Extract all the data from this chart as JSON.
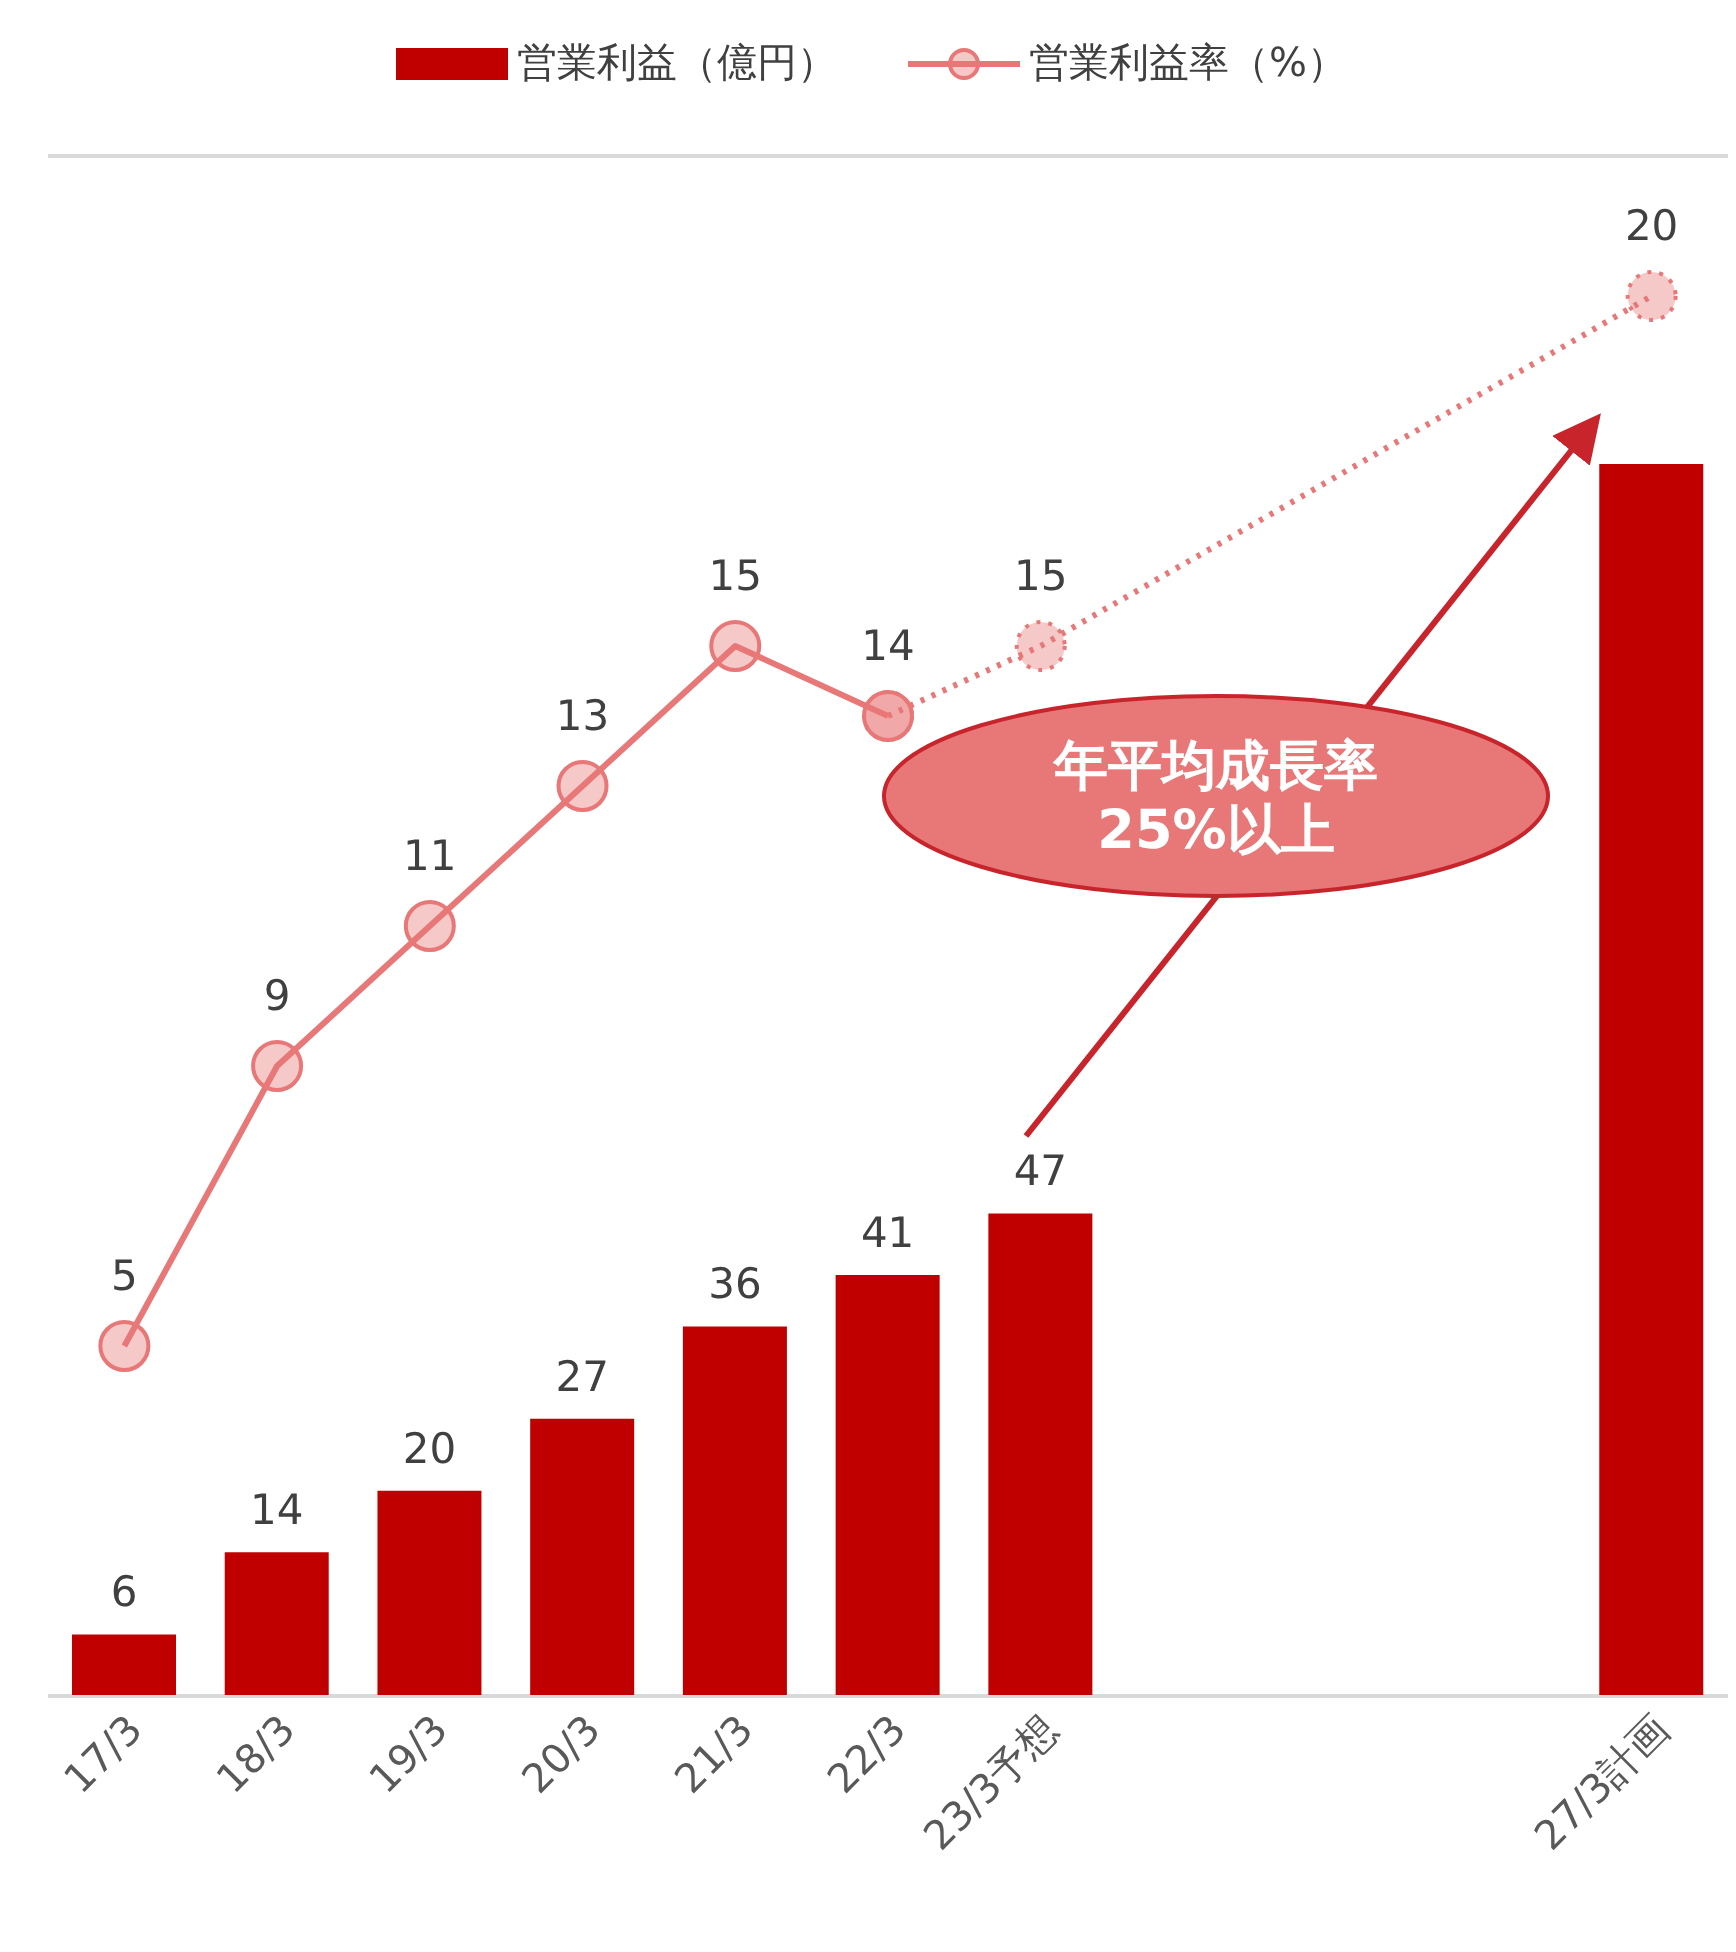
{
  "chart_data": {
    "type": "bar",
    "categories": [
      "17/3",
      "18/3",
      "19/3",
      "20/3",
      "21/3",
      "22/3",
      "23/3予想",
      null,
      null,
      null,
      "27/3計画"
    ],
    "series": [
      {
        "name": "営業利益（億円）",
        "color": "#c00000",
        "values": [
          6,
          14,
          20,
          27,
          36,
          41,
          47,
          null,
          null,
          null,
          120
        ],
        "value_labels": [
          "6",
          "14",
          "20",
          "27",
          "36",
          "41",
          "47",
          null,
          null,
          null,
          null
        ]
      },
      {
        "name": "営業利益率（%）",
        "type": "line",
        "axis": "y2",
        "color": "#e87878",
        "line_style": "solid",
        "values": [
          5,
          9,
          11,
          13,
          15,
          14,
          null,
          null,
          null,
          null,
          null
        ],
        "value_labels": [
          "5",
          "9",
          "11",
          "13",
          "15",
          "14",
          null,
          null,
          null,
          null,
          null
        ]
      },
      {
        "type": "line",
        "axis": "y2",
        "color": "#e87878",
        "line_style": "dotted",
        "values": [
          null,
          null,
          null,
          null,
          null,
          14,
          15,
          null,
          null,
          null,
          20
        ],
        "value_labels": [
          null,
          null,
          null,
          null,
          null,
          null,
          "15",
          null,
          null,
          null,
          "20"
        ]
      }
    ],
    "ylim": [
      0,
      150
    ],
    "y2lim": [
      0,
      22
    ],
    "tick_labels": "x",
    "grid": "y",
    "legend": "top",
    "marker": "circle",
    "annotations": [
      "年平均成長率\n25%以上"
    ]
  }
}
